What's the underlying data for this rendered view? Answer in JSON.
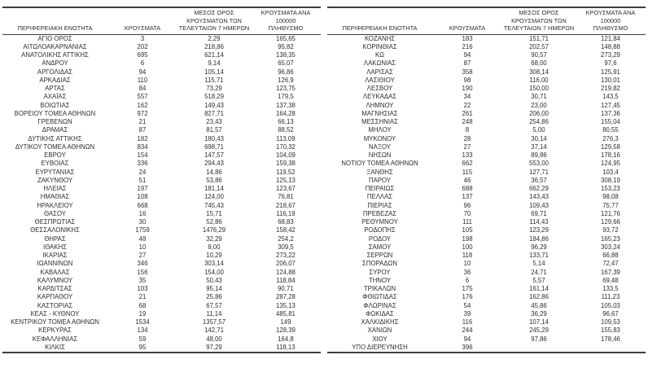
{
  "page": {
    "background_color": "#ffffff",
    "text_color": "#2e2e2e",
    "rule_color": "#3f3f3f"
  },
  "table": {
    "col_headers": {
      "region": "ΠΕΡΙΦΕΡΕΙΑΚΗ ΕΝΟΤΗΤΑ",
      "cases": "ΚΡΟΥΣΜΑΤΑ",
      "avg7": "ΜΕΣΟΣ ΟΡΟΣ\nΚΡΟΥΣΜΑΤΩΝ ΤΩΝ\nΤΕΛΕΥΤΑΙΩΝ 7 ΗΜΕΡΩΝ",
      "per100k": "ΚΡΟΥΣΜΑΤΑ ΑΝΑ 100000\nΠΛΗΘΥΣΜΟ"
    },
    "left_rows": [
      [
        "ΑΓΙΟ ΟΡΟΣ",
        "3",
        "2,29",
        "165,65"
      ],
      [
        "ΑΙΤΩΛΟΑΚΑΡΝΑΝΙΑΣ",
        "202",
        "218,86",
        "95,82"
      ],
      [
        "ΑΝΑΤΟΛΙΚΗΣ ΑΤΤΙΚΗΣ",
        "695",
        "621,14",
        "138,35"
      ],
      [
        "ΑΝΔΡΟΥ",
        "6",
        "9,14",
        "65,07"
      ],
      [
        "ΑΡΓΟΛΙΔΑΣ",
        "94",
        "105,14",
        "96,86"
      ],
      [
        "ΑΡΚΑΔΙΑΣ",
        "110",
        "115,71",
        "126,9"
      ],
      [
        "ΑΡΤΑΣ",
        "84",
        "73,29",
        "123,75"
      ],
      [
        "ΑΧΑΪΑΣ",
        "557",
        "518,29",
        "179,5"
      ],
      [
        "ΒΟΙΩΤΙΑΣ",
        "162",
        "149,43",
        "137,38"
      ],
      [
        "ΒΟΡΕΙΟΥ ΤΟΜΕΑ ΑΘΗΝΩΝ",
        "972",
        "827,71",
        "164,28"
      ],
      [
        "ΓΡΕΒΕΝΩΝ",
        "21",
        "23,43",
        "66,13"
      ],
      [
        "ΔΡΑΜΑΣ",
        "87",
        "81,57",
        "88,52"
      ],
      [
        "ΔΥΤΙΚΗΣ ΑΤΤΙΚΗΣ",
        "182",
        "180,43",
        "113,09"
      ],
      [
        "ΔΥΤΙΚΟΥ ΤΟΜΕΑ ΑΘΗΝΩΝ",
        "834",
        "698,71",
        "170,32"
      ],
      [
        "ΕΒΡΟΥ",
        "154",
        "147,57",
        "104,09"
      ],
      [
        "ΕΥΒΟΙΑΣ",
        "336",
        "294,43",
        "159,38"
      ],
      [
        "ΕΥΡΥΤΑΝΙΑΣ",
        "24",
        "14,86",
        "119,52"
      ],
      [
        "ΖΑΚΥΝΘΟΥ",
        "51",
        "53,86",
        "125,13"
      ],
      [
        "ΗΛΕΙΑΣ",
        "197",
        "181,14",
        "123,67"
      ],
      [
        "ΗΜΑΘΙΑΣ",
        "108",
        "124,00",
        "76,81"
      ],
      [
        "ΗΡΑΚΛΕΙΟΥ",
        "668",
        "745,43",
        "218,67"
      ],
      [
        "ΘΑΣΟΥ",
        "16",
        "15,71",
        "116,19"
      ],
      [
        "ΘΕΣΠΡΩΤΙΑΣ",
        "30",
        "52,86",
        "68,83"
      ],
      [
        "ΘΕΣΣΑΛΟΝΙΚΗΣ",
        "1759",
        "1476,29",
        "158,42"
      ],
      [
        "ΘΗΡΑΣ",
        "48",
        "32,29",
        "254,2"
      ],
      [
        "ΙΘΑΚΗΣ",
        "10",
        "8,00",
        "309,5"
      ],
      [
        "ΙΚΑΡΙΑΣ",
        "27",
        "10,29",
        "273,22"
      ],
      [
        "ΙΩΑΝΝΙΝΩΝ",
        "346",
        "303,14",
        "206,07"
      ],
      [
        "ΚΑΒΑΛΑΣ",
        "156",
        "154,00",
        "124,88"
      ],
      [
        "ΚΑΛΥΜΝΟΥ",
        "35",
        "50,43",
        "118,84"
      ],
      [
        "ΚΑΡΔΙΤΣΑΣ",
        "103",
        "95,14",
        "90,71"
      ],
      [
        "ΚΑΡΠΑΘΟΥ",
        "21",
        "25,86",
        "287,28"
      ],
      [
        "ΚΑΣΤΟΡΙΑΣ",
        "68",
        "67,57",
        "135,13"
      ],
      [
        "ΚΕΑΣ - ΚΥΘΝΟΥ",
        "19",
        "11,14",
        "485,81"
      ],
      [
        "ΚΕΝΤΡΙΚΟΥ ΤΟΜΕΑ ΑΘΗΝΩΝ",
        "1534",
        "1357,57",
        "149"
      ],
      [
        "ΚΕΡΚΥΡΑΣ",
        "134",
        "142,71",
        "128,39"
      ],
      [
        "ΚΕΦΑΛΛΗΝΙΑΣ",
        "59",
        "48,00",
        "164,8"
      ],
      [
        "ΚΙΛΚΙΣ",
        "95",
        "97,29",
        "118,13"
      ]
    ],
    "right_rows": [
      [
        "ΚΟΖΑΝΗΣ",
        "183",
        "151,71",
        "121,84"
      ],
      [
        "ΚΟΡΙΝΘΙΑΣ",
        "216",
        "202,57",
        "148,88"
      ],
      [
        "ΚΩ",
        "94",
        "90,57",
        "273,29"
      ],
      [
        "ΛΑΚΩΝΙΑΣ",
        "87",
        "68,00",
        "97,6"
      ],
      [
        "ΛΑΡΙΣΑΣ",
        "358",
        "308,14",
        "125,91"
      ],
      [
        "ΛΑΣΙΘΙΟΥ",
        "98",
        "116,00",
        "130,01"
      ],
      [
        "ΛΕΣΒΟΥ",
        "190",
        "150,00",
        "219,82"
      ],
      [
        "ΛΕΥΚΑΔΑΣ",
        "34",
        "30,71",
        "143,5"
      ],
      [
        "ΛΗΜΝΟΥ",
        "22",
        "23,00",
        "127,45"
      ],
      [
        "ΜΑΓΝΗΣΙΑΣ",
        "261",
        "206,00",
        "137,36"
      ],
      [
        "ΜΕΣΣΗΝΙΑΣ",
        "248",
        "254,86",
        "155,04"
      ],
      [
        "ΜΗΛΟΥ",
        "8",
        "5,00",
        "80,55"
      ],
      [
        "ΜΥΚΟΝΟΥ",
        "28",
        "30,14",
        "276,3"
      ],
      [
        "ΝΑΞΟΥ",
        "27",
        "37,14",
        "129,58"
      ],
      [
        "ΝΗΣΩΝ",
        "133",
        "89,86",
        "178,16"
      ],
      [
        "ΝΟΤΙΟΥ ΤΟΜΕΑ ΑΘΗΝΩΝ",
        "662",
        "553,00",
        "124,95"
      ],
      [
        "ΞΑΝΘΗΣ",
        "115",
        "127,71",
        "103,4"
      ],
      [
        "ΠΑΡΟΥ",
        "46",
        "36,57",
        "308,19"
      ],
      [
        "ΠΕΙΡΑΙΩΣ",
        "688",
        "662,29",
        "153,23"
      ],
      [
        "ΠΕΛΛΑΣ",
        "137",
        "143,43",
        "98,08"
      ],
      [
        "ΠΙΕΡΙΑΣ",
        "96",
        "109,43",
        "75,77"
      ],
      [
        "ΠΡΕΒΕΖΑΣ",
        "70",
        "69,71",
        "121,76"
      ],
      [
        "ΡΕΘΥΜΝΟΥ",
        "111",
        "114,43",
        "129,66"
      ],
      [
        "ΡΟΔΟΠΗΣ",
        "105",
        "123,29",
        "93,72"
      ],
      [
        "ΡΟΔΟΥ",
        "198",
        "184,86",
        "165,23"
      ],
      [
        "ΣΑΜΟΥ",
        "100",
        "96,29",
        "303,24"
      ],
      [
        "ΣΕΡΡΩΝ",
        "118",
        "133,71",
        "66,88"
      ],
      [
        "ΣΠΟΡΑΔΩΝ",
        "10",
        "5,14",
        "72,47"
      ],
      [
        "ΣΥΡΟΥ",
        "36",
        "24,71",
        "167,39"
      ],
      [
        "ΤΗΝΟΥ",
        "6",
        "5,57",
        "69,48"
      ],
      [
        "ΤΡΙΚΑΛΩΝ",
        "175",
        "161,14",
        "133,5"
      ],
      [
        "ΦΘΙΩΤΙΔΑΣ",
        "176",
        "162,86",
        "111,23"
      ],
      [
        "ΦΛΩΡΙΝΑΣ",
        "54",
        "45,86",
        "105,03"
      ],
      [
        "ΦΩΚΙΔΑΣ",
        "39",
        "36,29",
        "96,67"
      ],
      [
        "ΧΑΛΚΙΔΙΚΗΣ",
        "116",
        "107,14",
        "109,53"
      ],
      [
        "ΧΑΝΙΩΝ",
        "244",
        "245,29",
        "155,83"
      ],
      [
        "ΧΙΟΥ",
        "94",
        "97,86",
        "178,46"
      ],
      [
        "ΥΠΟ ΔΙΕΡΕΥΝΗΣΗ",
        "396",
        "",
        ""
      ]
    ]
  }
}
